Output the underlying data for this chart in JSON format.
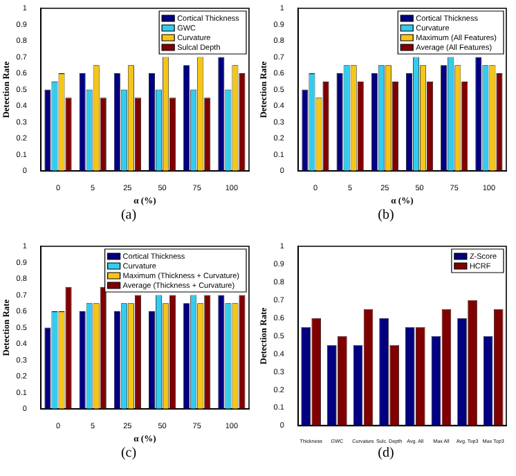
{
  "chart_data": [
    {
      "type": "bar",
      "categories": [
        "0",
        "5",
        "25",
        "50",
        "75",
        "100"
      ],
      "xlabel": "α (%)",
      "ylabel": "Detection Rate",
      "ylim": [
        0,
        1
      ],
      "yticks": [
        0,
        0.1,
        0.2,
        0.3,
        0.4,
        0.5,
        0.6,
        0.7,
        0.8,
        0.9,
        1
      ],
      "legend": "top right",
      "annotations": [
        "(a)"
      ],
      "series": [
        {
          "name": "Cortical Thickness",
          "color": "#000080",
          "values": [
            0.5,
            0.6,
            0.6,
            0.6,
            0.65,
            0.7
          ]
        },
        {
          "name": "GWC",
          "color": "#33ccee",
          "values": [
            0.55,
            0.5,
            0.5,
            0.5,
            0.5,
            0.5
          ]
        },
        {
          "name": "Curvature",
          "color": "#f5c518",
          "values": [
            0.6,
            0.65,
            0.65,
            0.7,
            0.7,
            0.65
          ]
        },
        {
          "name": "Sulcal Depth",
          "color": "#800000",
          "values": [
            0.45,
            0.45,
            0.45,
            0.45,
            0.45,
            0.6
          ]
        }
      ]
    },
    {
      "type": "bar",
      "categories": [
        "0",
        "5",
        "25",
        "50",
        "75",
        "100"
      ],
      "xlabel": "α (%)",
      "ylabel": "Detection Rate",
      "ylim": [
        0,
        1
      ],
      "yticks": [
        0,
        0.1,
        0.2,
        0.3,
        0.4,
        0.5,
        0.6,
        0.7,
        0.8,
        0.9,
        1
      ],
      "legend": "top right",
      "annotations": [
        "(b)"
      ],
      "series": [
        {
          "name": "Cortical Thickness",
          "color": "#000080",
          "values": [
            0.5,
            0.6,
            0.6,
            0.6,
            0.65,
            0.7
          ]
        },
        {
          "name": "Curvature",
          "color": "#33ccee",
          "values": [
            0.6,
            0.65,
            0.65,
            0.7,
            0.7,
            0.65
          ]
        },
        {
          "name": "Maximum (All Features)",
          "color": "#f5c518",
          "values": [
            0.45,
            0.65,
            0.65,
            0.65,
            0.65,
            0.65
          ]
        },
        {
          "name": "Average (All Features)",
          "color": "#800000",
          "values": [
            0.55,
            0.55,
            0.55,
            0.55,
            0.55,
            0.6
          ]
        }
      ]
    },
    {
      "type": "bar",
      "categories": [
        "0",
        "5",
        "25",
        "50",
        "75",
        "100"
      ],
      "xlabel": "α (%)",
      "ylabel": "Detection Rate",
      "ylim": [
        0,
        1
      ],
      "yticks": [
        0,
        0.1,
        0.2,
        0.3,
        0.4,
        0.5,
        0.6,
        0.7,
        0.8,
        0.9,
        1
      ],
      "legend": "top right",
      "annotations": [
        "(c)"
      ],
      "series": [
        {
          "name": "Cortical Thickness",
          "color": "#000080",
          "values": [
            0.5,
            0.6,
            0.6,
            0.6,
            0.65,
            0.7
          ]
        },
        {
          "name": "Curvature",
          "color": "#33ccee",
          "values": [
            0.6,
            0.65,
            0.65,
            0.7,
            0.7,
            0.65
          ]
        },
        {
          "name": "Maximum (Thickness + Curvature)",
          "color": "#f5c518",
          "values": [
            0.6,
            0.65,
            0.65,
            0.65,
            0.65,
            0.65
          ]
        },
        {
          "name": "Average (Thickness + Curvature)",
          "color": "#800000",
          "values": [
            0.75,
            0.75,
            0.7,
            0.7,
            0.7,
            0.7
          ]
        }
      ]
    },
    {
      "type": "bar",
      "categories": [
        "Thickness",
        "GWC",
        "Curvature",
        "Sulc. Depth",
        "Avg. All",
        "Max All",
        "Avg. Top3",
        "Max Top3"
      ],
      "ylabel": "Detection Rate",
      "ylim": [
        0,
        1
      ],
      "yticks": [
        0,
        0.1,
        0.2,
        0.3,
        0.4,
        0.5,
        0.6,
        0.7,
        0.8,
        0.9,
        1
      ],
      "legend": "top right",
      "annotations": [
        "(d)"
      ],
      "series": [
        {
          "name": "Z-Score",
          "color": "#000080",
          "values": [
            0.55,
            0.45,
            0.45,
            0.6,
            0.55,
            0.5,
            0.6,
            0.5
          ]
        },
        {
          "name": "HCRF",
          "color": "#800000",
          "values": [
            0.6,
            0.5,
            0.65,
            0.45,
            0.55,
            0.65,
            0.7,
            0.65
          ]
        }
      ]
    }
  ]
}
